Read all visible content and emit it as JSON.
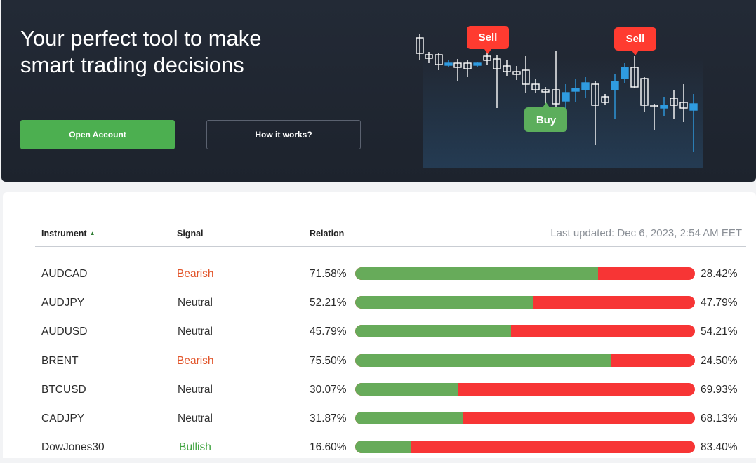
{
  "hero": {
    "title": "Your perfect tool to make smart trading decisions",
    "open_account_label": "Open Account",
    "how_it_works_label": "How it works?",
    "tags": {
      "sell1": "Sell",
      "sell2": "Sell",
      "buy": "Buy"
    }
  },
  "table": {
    "headers": {
      "instrument": "Instrument",
      "signal": "Signal",
      "relation": "Relation"
    },
    "last_updated": "Last updated: Dec 6, 2023, 2:54 AM EET",
    "rows": [
      {
        "instrument": "AUDCAD",
        "signal": "Bearish",
        "left_text": "71.58%",
        "right_text": "28.42%",
        "left_pct": 71.58
      },
      {
        "instrument": "AUDJPY",
        "signal": "Neutral",
        "left_text": "52.21%",
        "right_text": "47.79%",
        "left_pct": 52.21
      },
      {
        "instrument": "AUDUSD",
        "signal": "Neutral",
        "left_text": "45.79%",
        "right_text": "54.21%",
        "left_pct": 45.79
      },
      {
        "instrument": "BRENT",
        "signal": "Bearish",
        "left_text": "75.50%",
        "right_text": "24.50%",
        "left_pct": 75.5
      },
      {
        "instrument": "BTCUSD",
        "signal": "Neutral",
        "left_text": "30.07%",
        "right_text": "69.93%",
        "left_pct": 30.07
      },
      {
        "instrument": "CADJPY",
        "signal": "Neutral",
        "left_text": "31.87%",
        "right_text": "68.13%",
        "left_pct": 31.87
      },
      {
        "instrument": "DowJones30",
        "signal": "Bullish",
        "left_text": "16.60%",
        "right_text": "83.40%",
        "left_pct": 16.6
      }
    ]
  },
  "colors": {
    "buy": "#67ab5a",
    "sell": "#f73535",
    "bearish": "#e2562c",
    "bullish": "#3fa33f",
    "accent": "#4caf50"
  }
}
